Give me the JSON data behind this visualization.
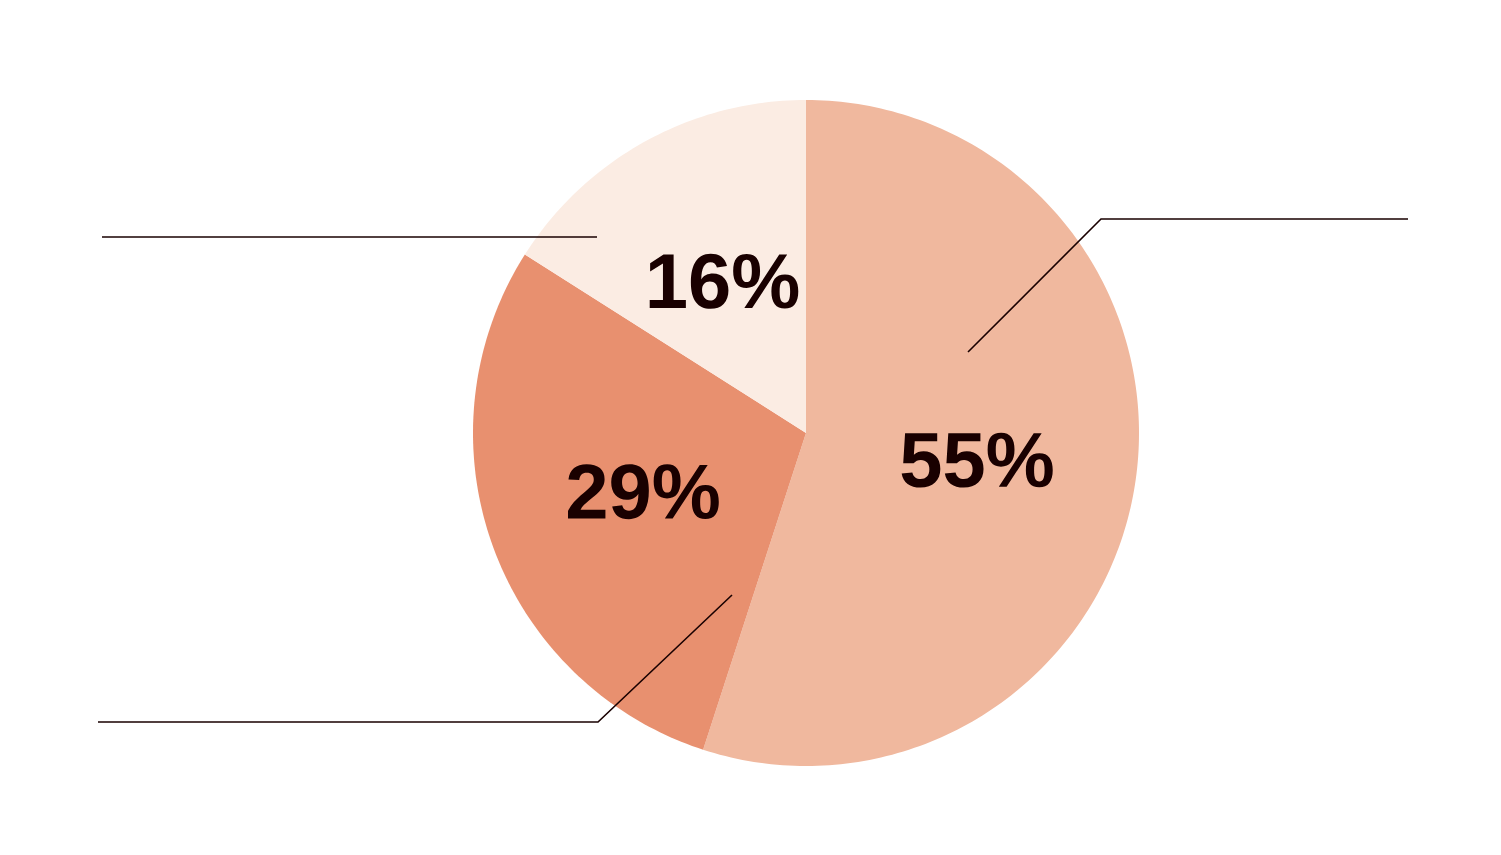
{
  "chart_data": {
    "type": "pie",
    "categories": [
      null,
      null,
      null
    ],
    "values": [
      55,
      29,
      16
    ],
    "colors": [
      "#f0b89e",
      "#e8906f",
      "#fbece3"
    ],
    "value_labels": [
      "55%",
      "29%",
      "16%"
    ]
  }
}
